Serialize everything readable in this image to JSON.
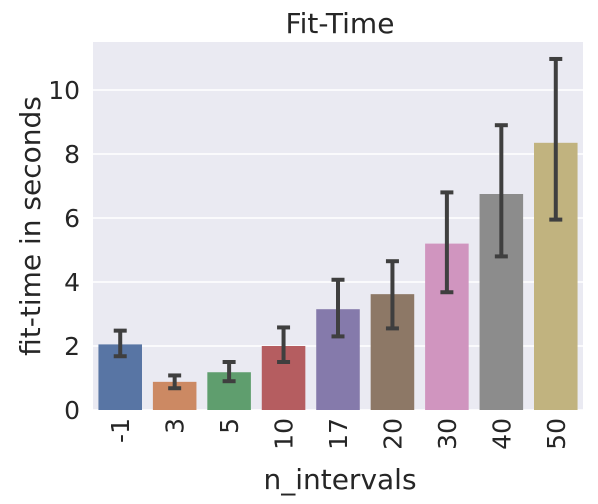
{
  "chart_data": {
    "type": "bar",
    "title": "Fit-Time",
    "xlabel": "n_intervals",
    "ylabel": "fit-time in seconds",
    "categories": [
      "-1",
      "3",
      "5",
      "10",
      "17",
      "20",
      "30",
      "40",
      "50"
    ],
    "values": [
      2.05,
      0.88,
      1.18,
      2.0,
      3.15,
      3.62,
      5.2,
      6.75,
      8.35
    ],
    "error_low": [
      1.68,
      0.68,
      0.9,
      1.5,
      2.3,
      2.55,
      3.68,
      4.8,
      5.95
    ],
    "error_high": [
      2.48,
      1.08,
      1.5,
      2.58,
      4.07,
      4.65,
      6.8,
      8.9,
      10.97
    ],
    "ylim": [
      0,
      11.5
    ],
    "yticks": [
      0,
      2,
      4,
      6,
      8,
      10
    ],
    "grid": true,
    "colors": {
      "bars": [
        "#5875a4",
        "#cc8963",
        "#5f9e6e",
        "#b55d60",
        "#857aab",
        "#8d7866",
        "#d095bf",
        "#8c8c8c",
        "#c1b37f"
      ],
      "plot_background": "#eaeaf2",
      "grid": "#ffffff",
      "error_bar": "#3f3f3f"
    }
  }
}
